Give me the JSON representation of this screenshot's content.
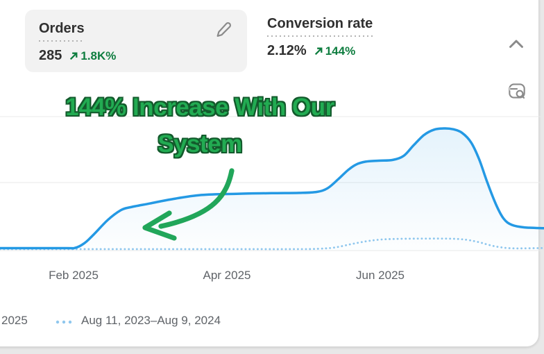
{
  "header": {
    "metrics": [
      {
        "label": "Orders",
        "value": "285",
        "delta": "1.8K%",
        "trend": "up"
      },
      {
        "label": "Conversion rate",
        "value": "2.12%",
        "delta": "144%",
        "trend": "up"
      }
    ]
  },
  "annotation": {
    "line1": "144% Increase With Our",
    "line2": "System"
  },
  "chart_data": {
    "type": "line",
    "title": "",
    "xlabel": "",
    "ylabel": "",
    "grid": true,
    "y_axis": {
      "tick_labels_visible": false,
      "scale": "percent_of_peak",
      "range": [
        0,
        100
      ]
    },
    "x_ticks": [
      "Feb 2025",
      "Apr 2025",
      "Jun 2025"
    ],
    "legend_position": "bottom-left",
    "series": [
      {
        "name": "2025",
        "style": "solid",
        "color": "#2499e4",
        "points": [
          [
            0,
            2
          ],
          [
            0.12,
            2
          ],
          [
            0.138,
            2.2
          ],
          [
            0.155,
            6
          ],
          [
            0.172,
            13
          ],
          [
            0.198,
            25
          ],
          [
            0.222,
            33
          ],
          [
            0.24,
            35.5
          ],
          [
            0.275,
            38.5
          ],
          [
            0.315,
            42
          ],
          [
            0.37,
            45.5
          ],
          [
            0.435,
            46.5
          ],
          [
            0.5,
            47
          ],
          [
            0.55,
            47.2
          ],
          [
            0.582,
            48
          ],
          [
            0.602,
            51
          ],
          [
            0.622,
            58.5
          ],
          [
            0.64,
            66
          ],
          [
            0.655,
            70.5
          ],
          [
            0.672,
            72.8
          ],
          [
            0.696,
            73.6
          ],
          [
            0.722,
            74.2
          ],
          [
            0.742,
            77.5
          ],
          [
            0.76,
            86
          ],
          [
            0.779,
            94.5
          ],
          [
            0.798,
            99
          ],
          [
            0.817,
            100
          ],
          [
            0.833,
            99.3
          ],
          [
            0.849,
            96.5
          ],
          [
            0.866,
            88.5
          ],
          [
            0.881,
            74.5
          ],
          [
            0.896,
            55.5
          ],
          [
            0.912,
            37.5
          ],
          [
            0.926,
            26
          ],
          [
            0.941,
            21
          ],
          [
            0.964,
            19
          ],
          [
            1,
            18.3
          ]
        ]
      },
      {
        "name": "Aug 11, 2023–Aug 9, 2024",
        "style": "dotted",
        "color": "#8fc7ee",
        "points": [
          [
            0,
            1.2
          ],
          [
            0.2,
            1.2
          ],
          [
            0.4,
            1.2
          ],
          [
            0.55,
            1.2
          ],
          [
            0.585,
            1.5
          ],
          [
            0.615,
            2.5
          ],
          [
            0.645,
            5.2
          ],
          [
            0.672,
            7.5
          ],
          [
            0.697,
            8.9
          ],
          [
            0.723,
            9.5
          ],
          [
            0.77,
            9.8
          ],
          [
            0.83,
            9.7
          ],
          [
            0.858,
            8.8
          ],
          [
            0.881,
            6.8
          ],
          [
            0.9,
            4.5
          ],
          [
            0.919,
            2.8
          ],
          [
            0.945,
            1.8
          ],
          [
            1,
            2.1
          ]
        ]
      }
    ],
    "annotations": [
      {
        "text": "144% Increase With Our System",
        "color": "#22ab52",
        "note": "curved green arrow pointing to current-period line"
      }
    ]
  },
  "legend": {
    "items": [
      {
        "label": "2025"
      },
      {
        "label": "Aug 11, 2023–Aug 9, 2024",
        "marker": "dotted"
      }
    ]
  },
  "colors": {
    "current_line": "#2499e4",
    "previous_line": "#8fc7ee",
    "metric_green": "#0e7d3f",
    "annotation_green": "#22ab52",
    "arrow_green": "#21a65a",
    "gridline": "#e9e9e9",
    "text_primary": "#303030",
    "text_secondary": "#5f6368",
    "card_background": "#ffffff",
    "metric_pill_background": "#f2f2f2",
    "page_background": "#e8e8e8"
  }
}
